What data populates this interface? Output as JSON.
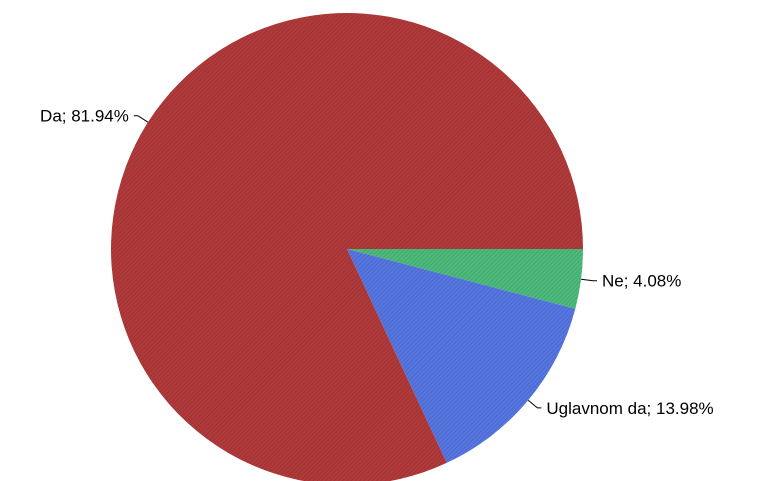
{
  "chart_data": {
    "type": "pie",
    "title": "",
    "slices": [
      {
        "label": "Ne",
        "value": 4.08,
        "display": "Ne; 4.08%",
        "color": "#4cba7a"
      },
      {
        "label": "Uglavnom da",
        "value": 13.98,
        "display": "Uglavnom da; 13.98%",
        "color": "#5575e0"
      },
      {
        "label": "Da",
        "value": 81.94,
        "display": "Da; 81.94%",
        "color": "#b0393a"
      }
    ],
    "start_angle_deg": 0,
    "direction": "clockwise",
    "legend": "none",
    "pattern": "diagonal-hatch"
  }
}
